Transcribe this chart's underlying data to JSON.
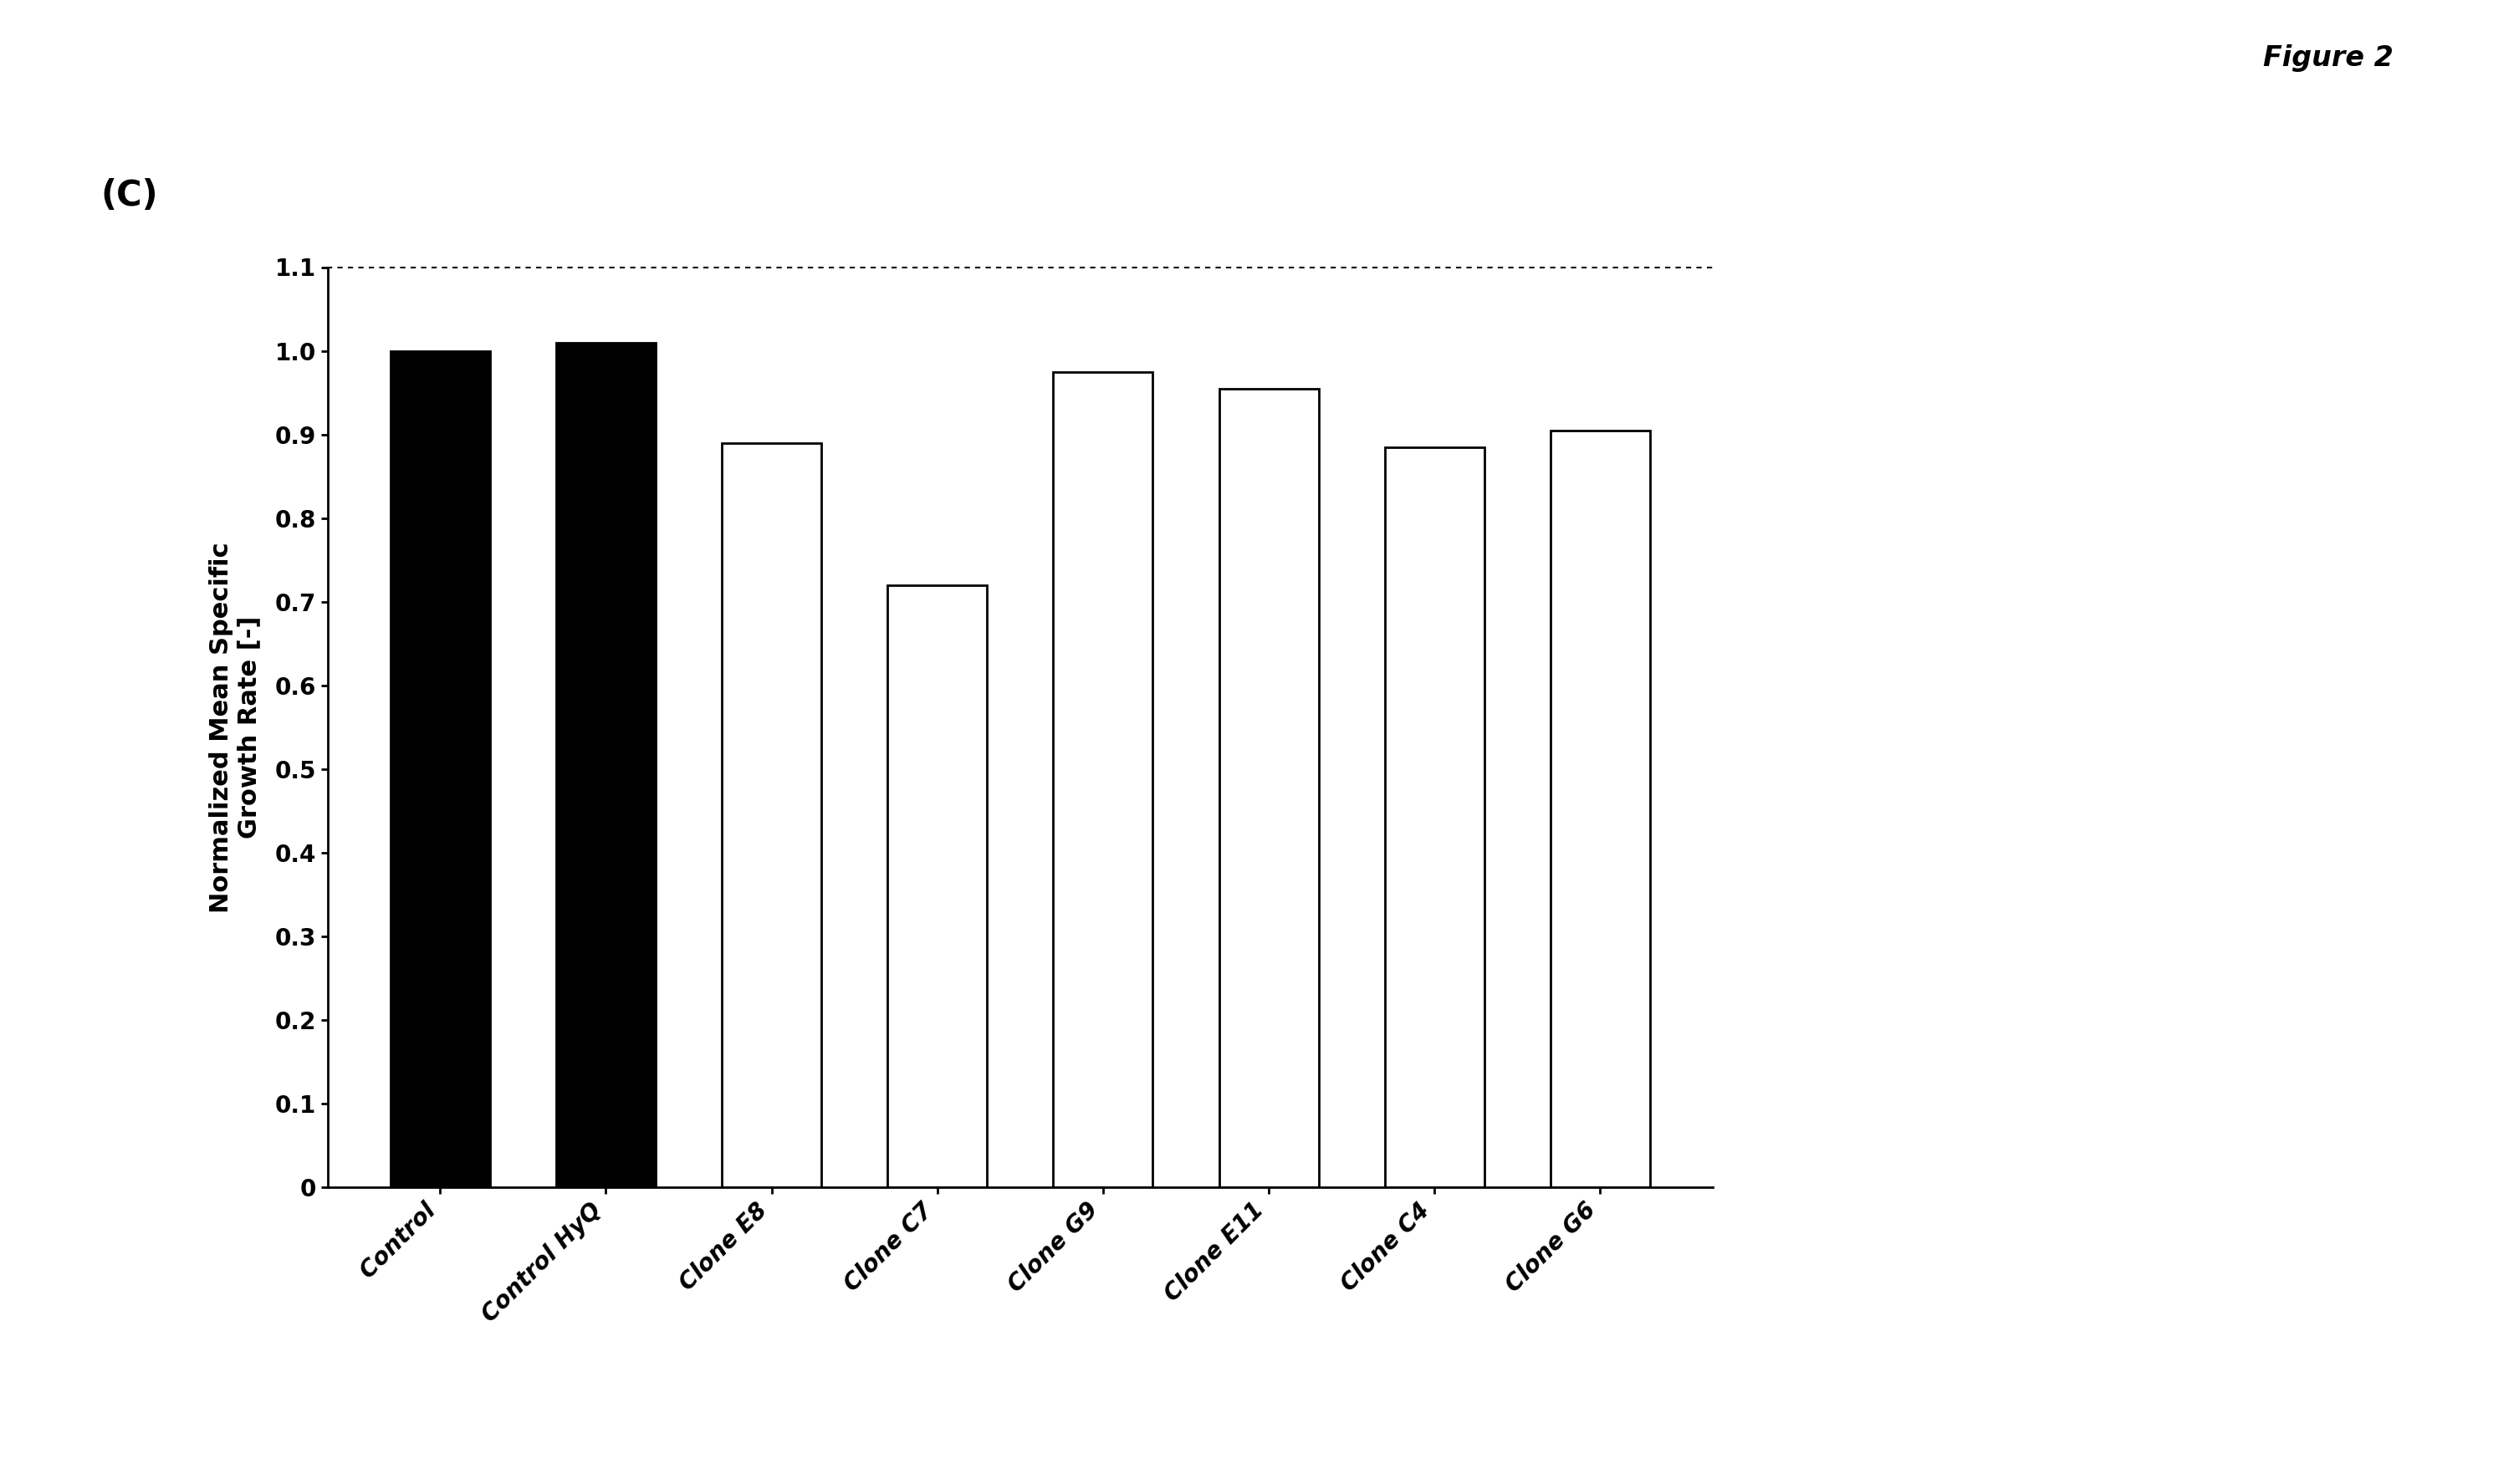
{
  "categories": [
    "Control",
    "Control HyQ",
    "Clone E8",
    "Clone C7",
    "Clone G9",
    "Clone E11",
    "Clone C4",
    "Clone G6"
  ],
  "values": [
    1.0,
    1.01,
    0.89,
    0.72,
    0.975,
    0.955,
    0.885,
    0.905
  ],
  "bar_colors": [
    "#000000",
    "#000000",
    "#ffffff",
    "#ffffff",
    "#ffffff",
    "#ffffff",
    "#ffffff",
    "#ffffff"
  ],
  "bar_edgecolors": [
    "#000000",
    "#000000",
    "#000000",
    "#000000",
    "#000000",
    "#000000",
    "#000000",
    "#000000"
  ],
  "ylabel": "Normalized Mean Specific\nGrowth Rate [-]",
  "ylim": [
    0,
    1.1
  ],
  "yticks": [
    0,
    0.1,
    0.2,
    0.3,
    0.4,
    0.5,
    0.6,
    0.7,
    0.8,
    0.9,
    1.0,
    1.1
  ],
  "panel_label": "(C)",
  "figure_label": "Figure 2",
  "background_color": "#ffffff",
  "bar_linewidth": 2.0,
  "axis_linewidth": 2.0,
  "tick_fontsize": 20,
  "ylabel_fontsize": 22,
  "panel_label_fontsize": 30,
  "figure_label_fontsize": 24,
  "xlabel_rotation": 45,
  "xlabel_fontsize": 20,
  "bar_width": 0.6
}
